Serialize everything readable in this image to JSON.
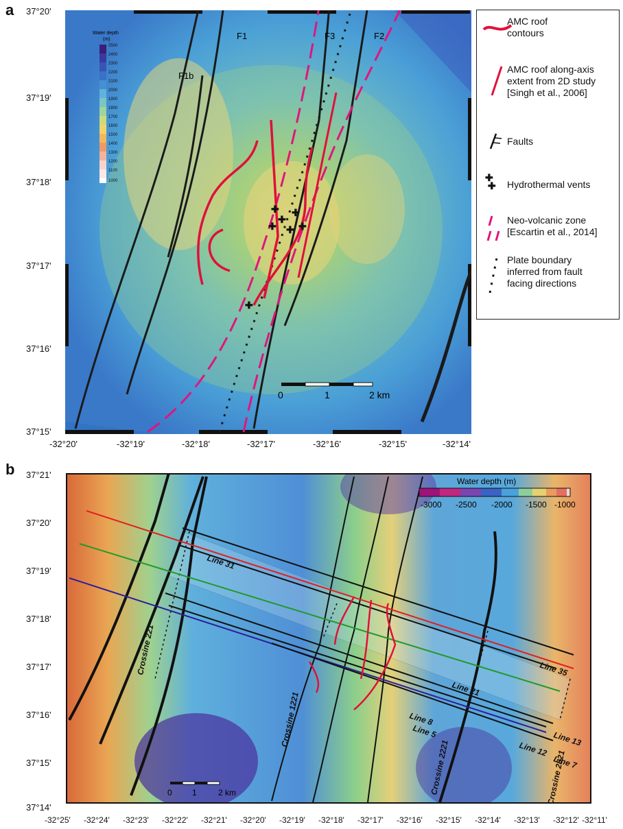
{
  "panel_a": {
    "letter": "a",
    "lat_labels": [
      "37°20'",
      "37°19'",
      "37°18'",
      "37°17'",
      "37°16'",
      "37°15'"
    ],
    "lon_labels": [
      "-32°20'",
      "-32°19'",
      "-32°18'",
      "-32°17'",
      "-32°16'",
      "-32°15'",
      "-32°14'"
    ],
    "fault_labels": [
      "F1",
      "F1b",
      "F3",
      "F2"
    ],
    "colorbar": {
      "title": "Water depth",
      "unit": "(m)",
      "ticks": [
        "2500",
        "2400",
        "2300",
        "2200",
        "2100",
        "2000",
        "1900",
        "1800",
        "1700",
        "1600",
        "1500",
        "1400",
        "1300",
        "1200",
        "1100",
        "1000"
      ]
    },
    "scale_bar": {
      "ticks": [
        "0",
        "1",
        "2 km"
      ]
    }
  },
  "legend": {
    "items": [
      {
        "id": "amc",
        "label": "AMC roof contours",
        "lines": [
          "AMC roof",
          "contours"
        ]
      },
      {
        "id": "amc2d",
        "label": "AMC roof along-axis extent from 2D study [Singh et al., 2006]",
        "lines": [
          "AMC roof along-axis",
          "extent from 2D study",
          "[Singh et al., 2006]"
        ]
      },
      {
        "id": "faults",
        "label": "Faults",
        "lines": [
          "Faults"
        ]
      },
      {
        "id": "vents",
        "label": "Hydrothermal vents",
        "lines": [
          "Hydrothermal vents"
        ]
      },
      {
        "id": "nvz",
        "label": "Neo-volcanic zone [Escartin et al., 2014]",
        "lines": [
          "Neo-volcanic zone",
          "[Escartin et al., 2014]"
        ]
      },
      {
        "id": "plate",
        "label": "Plate boundary inferred from fault facing directions",
        "lines": [
          "Plate boundary",
          "inferred from fault",
          "facing directions"
        ]
      }
    ],
    "colors": {
      "amc": "#e0103a",
      "nvz": "#e0157d",
      "fault": "#1a1a1a"
    }
  },
  "panel_b": {
    "letter": "b",
    "lat_labels": [
      "37°21'",
      "37°20'",
      "37°19'",
      "37°18'",
      "37°17'",
      "37°16'",
      "37°15'",
      "37°14'"
    ],
    "lon_labels": [
      "-32°25'",
      "-32°24'",
      "-32°23'",
      "-32°22'",
      "-32°21'",
      "-32°20'",
      "-32°19'",
      "-32°18'",
      "-32°17'",
      "-32°16'",
      "-32°15'",
      "-32°14'",
      "-32°13'",
      "-32°12'",
      "-32°11'"
    ],
    "colorbar": {
      "title": "Water depth (m)",
      "ticks": [
        "-3000",
        "-2500",
        "-2000",
        "-1500",
        "-1000"
      ]
    },
    "scale_bar": {
      "ticks": [
        "0",
        "1",
        "2 km"
      ]
    },
    "line_labels": [
      "Line 31",
      "Line 35",
      "Line 21",
      "Line 8",
      "Line 5",
      "Line 12",
      "Line 13",
      "Line 7"
    ],
    "crossline_labels": [
      "Crossine 221",
      "Crossine 1221",
      "Crossine 2221",
      "Crossine 2821"
    ]
  }
}
